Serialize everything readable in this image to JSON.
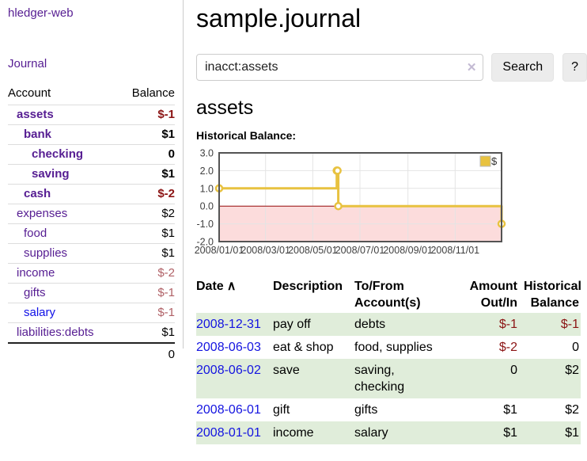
{
  "sidebar": {
    "app_title": "hledger-web",
    "journal_label": "Journal",
    "accounts": {
      "account_header": "Account",
      "balance_header": "Balance",
      "rows": [
        {
          "name": "assets",
          "balance": "$-1",
          "indent": 1,
          "bold": true
        },
        {
          "name": "bank",
          "balance": "$1",
          "indent": 2,
          "bold": true
        },
        {
          "name": "checking",
          "balance": "0",
          "indent": 3,
          "bold": true
        },
        {
          "name": "saving",
          "balance": "$1",
          "indent": 3,
          "bold": true
        },
        {
          "name": "cash",
          "balance": "$-2",
          "indent": 2,
          "bold": true
        },
        {
          "name": "expenses",
          "balance": "$2",
          "indent": 1,
          "bold": false
        },
        {
          "name": "food",
          "balance": "$1",
          "indent": 2,
          "bold": false
        },
        {
          "name": "supplies",
          "balance": "$1",
          "indent": 2,
          "bold": false
        },
        {
          "name": "income",
          "balance": "$-2",
          "indent": 1,
          "bold": false
        },
        {
          "name": "gifts",
          "balance": "$-1",
          "indent": 2,
          "bold": false
        },
        {
          "name": "salary",
          "balance": "$-1",
          "indent": 2,
          "bold": false,
          "blue": true
        },
        {
          "name": "liabilities:debts",
          "balance": "$1",
          "indent": 1,
          "bold": false
        }
      ],
      "total": "0"
    }
  },
  "header": {
    "title": "sample.journal"
  },
  "search": {
    "value": "inacct:assets",
    "clear_icon": "✕",
    "search_label": "Search",
    "help_label": "?"
  },
  "account": {
    "title": "assets",
    "chart_label": "Historical Balance:"
  },
  "chart_data": {
    "type": "line",
    "title": "Historical Balance:",
    "series": [
      {
        "name": "$",
        "step": true,
        "points": [
          [
            "2008-01-01",
            1
          ],
          [
            "2008-06-01",
            2
          ],
          [
            "2008-06-02",
            2
          ],
          [
            "2008-06-03",
            0
          ],
          [
            "2008-12-31",
            -1
          ]
        ]
      }
    ],
    "x_range": [
      "2008-01-01",
      "2008-12-31"
    ],
    "ylim": [
      -2,
      3
    ],
    "y_ticks": [
      3,
      2,
      1,
      0,
      -1,
      -2
    ],
    "x_ticks": [
      "2008/01/01",
      "2008/03/01",
      "2008/05/01",
      "2008/07/01",
      "2008/09/01",
      "2008/11/01"
    ],
    "legend": {
      "label": "$",
      "position": "top-right"
    },
    "grid": true,
    "colors": {
      "line": "#e8c240",
      "negative_region": "#fcdcdc",
      "zero_line": "#9c0c0c",
      "border": "#545454",
      "gridline": "#e4e4e4"
    }
  },
  "register": {
    "headers": {
      "date": "Date",
      "sort_icon": "∧",
      "description": "Description",
      "to_from": "To/From\nAccount(s)",
      "amount": "Amount\nOut/In",
      "balance": "Historical\nBalance"
    },
    "rows": [
      {
        "date": "2008-12-31",
        "description": "pay off",
        "to_from": "debts",
        "amount": "$-1",
        "balance": "$-1"
      },
      {
        "date": "2008-06-03",
        "description": "eat & shop",
        "to_from": "food, supplies",
        "amount": "$-2",
        "balance": "0"
      },
      {
        "date": "2008-06-02",
        "description": "save",
        "to_from": "saving,\nchecking",
        "amount": "0",
        "balance": "$2"
      },
      {
        "date": "2008-06-01",
        "description": "gift",
        "to_from": "gifts",
        "amount": "$1",
        "balance": "$2"
      },
      {
        "date": "2008-01-01",
        "description": "income",
        "to_from": "salary",
        "amount": "$1",
        "balance": "$1"
      }
    ]
  }
}
